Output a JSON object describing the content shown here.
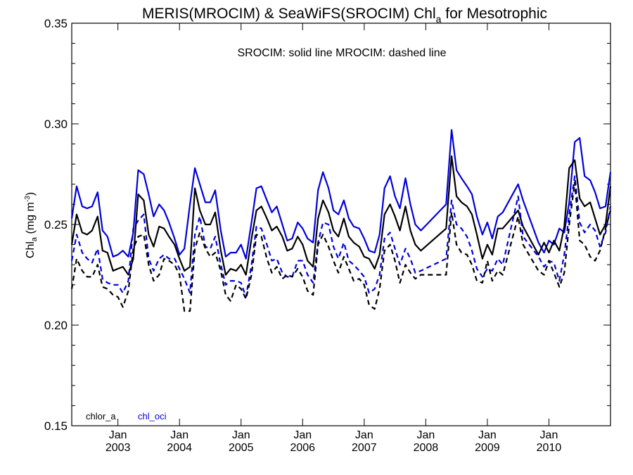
{
  "chart_data": {
    "type": "line",
    "title_prefix": "MERIS(MROCIM) & SeaWiFS(SROCIM)  Chl",
    "title_sub": "a",
    "title_suffix": " for Mesotrophic",
    "ylabel_main": "Chl",
    "ylabel_sub": "a",
    "ylabel_unit": " (mg m",
    "ylabel_sup": "-3",
    "ylabel_close": ")",
    "annotation": "SROCIM: solid line   MROCIM: dashed line",
    "ylim": [
      0.15,
      0.35
    ],
    "yticks": [
      0.15,
      0.2,
      0.25,
      0.3,
      0.35
    ],
    "ytick_labels": [
      "0.15",
      "0.20",
      "0.25",
      "0.30",
      "0.35"
    ],
    "xlim": [
      2002.25,
      2011.0
    ],
    "xticks": [
      {
        "pos": 2003.0,
        "month": "Jan",
        "year": "2003"
      },
      {
        "pos": 2004.0,
        "month": "Jan",
        "year": "2004"
      },
      {
        "pos": 2005.0,
        "month": "Jan",
        "year": "2005"
      },
      {
        "pos": 2006.0,
        "month": "Jan",
        "year": "2006"
      },
      {
        "pos": 2007.0,
        "month": "Jan",
        "year": "2007"
      },
      {
        "pos": 2008.0,
        "month": "Jan",
        "year": "2008"
      },
      {
        "pos": 2009.0,
        "month": "Jan",
        "year": "2009"
      },
      {
        "pos": 2010.0,
        "month": "Jan",
        "year": "2010"
      }
    ],
    "legend": [
      {
        "label": "chlor_a",
        "color": "#000000"
      },
      {
        "label": "chl_oci",
        "color": "#0000dd"
      }
    ],
    "grid": false,
    "series": [
      {
        "legend_index": 1,
        "line_style": "solid",
        "color": "#0000dd",
        "x": [
          2002.25,
          2002.33,
          2002.42,
          2002.5,
          2002.58,
          2002.67,
          2002.75,
          2002.83,
          2002.92,
          2003.0,
          2003.08,
          2003.17,
          2003.25,
          2003.33,
          2003.42,
          2003.5,
          2003.58,
          2003.67,
          2003.75,
          2003.83,
          2003.92,
          2004.0,
          2004.08,
          2004.17,
          2004.25,
          2004.33,
          2004.42,
          2004.5,
          2004.58,
          2004.67,
          2004.75,
          2004.83,
          2004.92,
          2005.0,
          2005.08,
          2005.17,
          2005.25,
          2005.33,
          2005.42,
          2005.5,
          2005.58,
          2005.67,
          2005.75,
          2005.83,
          2005.92,
          2006.0,
          2006.08,
          2006.17,
          2006.25,
          2006.33,
          2006.42,
          2006.5,
          2006.58,
          2006.67,
          2006.75,
          2006.83,
          2006.92,
          2007.0,
          2007.08,
          2007.17,
          2007.25,
          2007.33,
          2007.42,
          2007.5,
          2007.58,
          2007.67,
          2007.75,
          2007.83,
          2007.92,
          2008.33,
          2008.42,
          2008.5,
          2008.58,
          2008.67,
          2008.75,
          2008.83,
          2008.92,
          2009.0,
          2009.08,
          2009.17,
          2009.25,
          2009.5,
          2009.58,
          2009.83,
          2009.92,
          2010.0,
          2010.08,
          2010.17,
          2010.25,
          2010.33,
          2010.42,
          2010.5,
          2010.58,
          2010.67,
          2010.75,
          2010.83,
          2010.92,
          2011.0
        ],
        "y": [
          0.253,
          0.269,
          0.259,
          0.258,
          0.259,
          0.266,
          0.247,
          0.244,
          0.234,
          0.235,
          0.237,
          0.234,
          0.246,
          0.277,
          0.275,
          0.265,
          0.254,
          0.26,
          0.257,
          0.251,
          0.243,
          0.235,
          0.238,
          0.26,
          0.278,
          0.27,
          0.261,
          0.261,
          0.267,
          0.247,
          0.234,
          0.236,
          0.236,
          0.24,
          0.233,
          0.251,
          0.268,
          0.269,
          0.262,
          0.256,
          0.259,
          0.25,
          0.242,
          0.243,
          0.251,
          0.248,
          0.243,
          0.241,
          0.267,
          0.276,
          0.268,
          0.257,
          0.255,
          0.262,
          0.253,
          0.249,
          0.248,
          0.243,
          0.237,
          0.236,
          0.245,
          0.268,
          0.274,
          0.264,
          0.258,
          0.273,
          0.26,
          0.25,
          0.247,
          0.26,
          0.297,
          0.277,
          0.273,
          0.269,
          0.265,
          0.254,
          0.245,
          0.251,
          0.243,
          0.254,
          0.256,
          0.27,
          0.262,
          0.241,
          0.236,
          0.242,
          0.24,
          0.248,
          0.246,
          0.261,
          0.291,
          0.293,
          0.274,
          0.272,
          0.266,
          0.258,
          0.259,
          0.276
        ]
      },
      {
        "legend_index": 0,
        "line_style": "solid",
        "color": "#000000",
        "x": [
          2002.25,
          2002.33,
          2002.42,
          2002.5,
          2002.58,
          2002.67,
          2002.75,
          2002.83,
          2002.92,
          2003.0,
          2003.08,
          2003.17,
          2003.25,
          2003.33,
          2003.42,
          2003.5,
          2003.58,
          2003.67,
          2003.75,
          2003.83,
          2003.92,
          2004.0,
          2004.08,
          2004.17,
          2004.25,
          2004.33,
          2004.42,
          2004.5,
          2004.58,
          2004.67,
          2004.75,
          2004.83,
          2004.92,
          2005.0,
          2005.08,
          2005.17,
          2005.25,
          2005.33,
          2005.42,
          2005.5,
          2005.58,
          2005.67,
          2005.75,
          2005.83,
          2005.92,
          2006.0,
          2006.08,
          2006.17,
          2006.25,
          2006.33,
          2006.42,
          2006.5,
          2006.58,
          2006.67,
          2006.75,
          2006.83,
          2006.92,
          2007.0,
          2007.08,
          2007.17,
          2007.25,
          2007.33,
          2007.42,
          2007.5,
          2007.58,
          2007.67,
          2007.75,
          2007.83,
          2007.92,
          2008.33,
          2008.42,
          2008.5,
          2008.58,
          2008.67,
          2008.75,
          2008.83,
          2008.92,
          2009.0,
          2009.08,
          2009.17,
          2009.25,
          2009.5,
          2009.58,
          2009.83,
          2009.92,
          2010.0,
          2010.08,
          2010.17,
          2010.25,
          2010.33,
          2010.42,
          2010.5,
          2010.58,
          2010.67,
          2010.75,
          2010.83,
          2010.92,
          2011.0
        ],
        "y": [
          0.24,
          0.255,
          0.246,
          0.245,
          0.247,
          0.254,
          0.237,
          0.236,
          0.227,
          0.228,
          0.229,
          0.225,
          0.233,
          0.265,
          0.262,
          0.245,
          0.239,
          0.249,
          0.248,
          0.244,
          0.24,
          0.233,
          0.227,
          0.229,
          0.268,
          0.257,
          0.25,
          0.25,
          0.256,
          0.237,
          0.225,
          0.228,
          0.227,
          0.23,
          0.225,
          0.243,
          0.257,
          0.259,
          0.253,
          0.247,
          0.249,
          0.244,
          0.237,
          0.238,
          0.244,
          0.24,
          0.232,
          0.229,
          0.253,
          0.262,
          0.256,
          0.247,
          0.244,
          0.253,
          0.244,
          0.241,
          0.239,
          0.234,
          0.233,
          0.228,
          0.235,
          0.255,
          0.26,
          0.254,
          0.247,
          0.259,
          0.247,
          0.24,
          0.237,
          0.248,
          0.284,
          0.264,
          0.261,
          0.259,
          0.255,
          0.245,
          0.233,
          0.24,
          0.235,
          0.248,
          0.248,
          0.257,
          0.249,
          0.235,
          0.241,
          0.236,
          0.242,
          0.237,
          0.249,
          0.278,
          0.282,
          0.263,
          0.259,
          0.261,
          0.253,
          0.245,
          0.25,
          0.269
        ]
      },
      {
        "legend_index": 1,
        "line_style": "dashed",
        "color": "#0000dd",
        "x": [
          2002.25,
          2002.33,
          2002.42,
          2002.5,
          2002.58,
          2002.67,
          2002.75,
          2002.83,
          2002.92,
          2003.0,
          2003.08,
          2003.17,
          2003.25,
          2003.33,
          2003.42,
          2003.5,
          2003.58,
          2003.67,
          2003.75,
          2003.83,
          2003.92,
          2004.0,
          2004.08,
          2004.17,
          2004.25,
          2004.33,
          2004.42,
          2004.5,
          2004.58,
          2004.67,
          2004.75,
          2004.83,
          2004.92,
          2005.0,
          2005.08,
          2005.17,
          2005.25,
          2005.33,
          2005.42,
          2005.5,
          2005.58,
          2005.67,
          2005.75,
          2005.83,
          2005.92,
          2006.0,
          2006.08,
          2006.17,
          2006.25,
          2006.33,
          2006.42,
          2006.5,
          2006.58,
          2006.67,
          2006.75,
          2006.83,
          2006.92,
          2007.0,
          2007.08,
          2007.17,
          2007.25,
          2007.33,
          2007.42,
          2007.5,
          2007.58,
          2007.67,
          2007.75,
          2007.83,
          2007.92,
          2008.33,
          2008.42,
          2008.5,
          2008.58,
          2008.67,
          2008.75,
          2008.83,
          2008.92,
          2009.0,
          2009.08,
          2009.17,
          2009.25,
          2009.5,
          2009.58,
          2009.83,
          2009.92,
          2010.0,
          2010.08,
          2010.17,
          2010.25,
          2010.33,
          2010.42,
          2010.5,
          2010.58,
          2010.67,
          2010.75,
          2010.83,
          2010.92,
          2011.0
        ],
        "y": [
          0.232,
          0.245,
          0.236,
          0.233,
          0.231,
          0.238,
          0.223,
          0.221,
          0.22,
          0.22,
          0.216,
          0.222,
          0.248,
          0.252,
          0.255,
          0.233,
          0.227,
          0.233,
          0.235,
          0.233,
          0.233,
          0.228,
          0.223,
          0.216,
          0.245,
          0.254,
          0.239,
          0.238,
          0.244,
          0.23,
          0.22,
          0.222,
          0.222,
          0.221,
          0.214,
          0.23,
          0.249,
          0.248,
          0.24,
          0.232,
          0.233,
          0.226,
          0.224,
          0.224,
          0.232,
          0.232,
          0.225,
          0.221,
          0.241,
          0.251,
          0.25,
          0.239,
          0.233,
          0.241,
          0.232,
          0.23,
          0.227,
          0.224,
          0.216,
          0.218,
          0.225,
          0.243,
          0.246,
          0.238,
          0.23,
          0.238,
          0.233,
          0.226,
          0.227,
          0.233,
          0.262,
          0.25,
          0.248,
          0.244,
          0.237,
          0.228,
          0.224,
          0.228,
          0.227,
          0.233,
          0.23,
          0.264,
          0.244,
          0.234,
          0.229,
          0.232,
          0.231,
          0.222,
          0.235,
          0.255,
          0.274,
          0.251,
          0.246,
          0.25,
          0.247,
          0.239,
          0.246,
          0.259
        ]
      },
      {
        "legend_index": 0,
        "line_style": "dashed",
        "color": "#000000",
        "x": [
          2002.25,
          2002.33,
          2002.42,
          2002.5,
          2002.58,
          2002.67,
          2002.75,
          2002.83,
          2002.92,
          2003.0,
          2003.08,
          2003.17,
          2003.25,
          2003.33,
          2003.42,
          2003.5,
          2003.58,
          2003.67,
          2003.75,
          2003.83,
          2003.92,
          2004.0,
          2004.08,
          2004.17,
          2004.25,
          2004.33,
          2004.42,
          2004.5,
          2004.58,
          2004.67,
          2004.75,
          2004.83,
          2004.92,
          2005.0,
          2005.08,
          2005.17,
          2005.25,
          2005.33,
          2005.42,
          2005.5,
          2005.58,
          2005.67,
          2005.75,
          2005.83,
          2005.92,
          2006.0,
          2006.08,
          2006.17,
          2006.25,
          2006.33,
          2006.42,
          2006.5,
          2006.58,
          2006.67,
          2006.75,
          2006.83,
          2006.92,
          2007.0,
          2007.08,
          2007.17,
          2007.25,
          2007.33,
          2007.42,
          2007.5,
          2007.58,
          2007.67,
          2007.75,
          2007.83,
          2007.92,
          2008.33,
          2008.42,
          2008.5,
          2008.58,
          2008.67,
          2008.75,
          2008.83,
          2008.92,
          2009.0,
          2009.08,
          2009.17,
          2009.25,
          2009.5,
          2009.58,
          2009.83,
          2009.92,
          2010.0,
          2010.08,
          2010.17,
          2010.25,
          2010.33,
          2010.42,
          2010.5,
          2010.58,
          2010.67,
          2010.75,
          2010.83,
          2010.92,
          2011.0
        ],
        "y": [
          0.218,
          0.233,
          0.227,
          0.224,
          0.224,
          0.23,
          0.219,
          0.218,
          0.215,
          0.214,
          0.209,
          0.217,
          0.238,
          0.244,
          0.245,
          0.23,
          0.222,
          0.225,
          0.233,
          0.232,
          0.23,
          0.225,
          0.207,
          0.207,
          0.238,
          0.246,
          0.238,
          0.234,
          0.236,
          0.227,
          0.215,
          0.212,
          0.22,
          0.218,
          0.213,
          0.225,
          0.245,
          0.244,
          0.233,
          0.226,
          0.229,
          0.223,
          0.225,
          0.224,
          0.228,
          0.224,
          0.217,
          0.215,
          0.24,
          0.245,
          0.239,
          0.232,
          0.226,
          0.234,
          0.228,
          0.222,
          0.223,
          0.22,
          0.21,
          0.208,
          0.218,
          0.237,
          0.24,
          0.232,
          0.221,
          0.23,
          0.226,
          0.223,
          0.225,
          0.225,
          0.256,
          0.24,
          0.236,
          0.235,
          0.23,
          0.222,
          0.221,
          0.232,
          0.222,
          0.227,
          0.225,
          0.254,
          0.24,
          0.227,
          0.225,
          0.232,
          0.226,
          0.219,
          0.226,
          0.25,
          0.271,
          0.242,
          0.24,
          0.234,
          0.232,
          0.237,
          0.248,
          0.257
        ]
      }
    ]
  }
}
